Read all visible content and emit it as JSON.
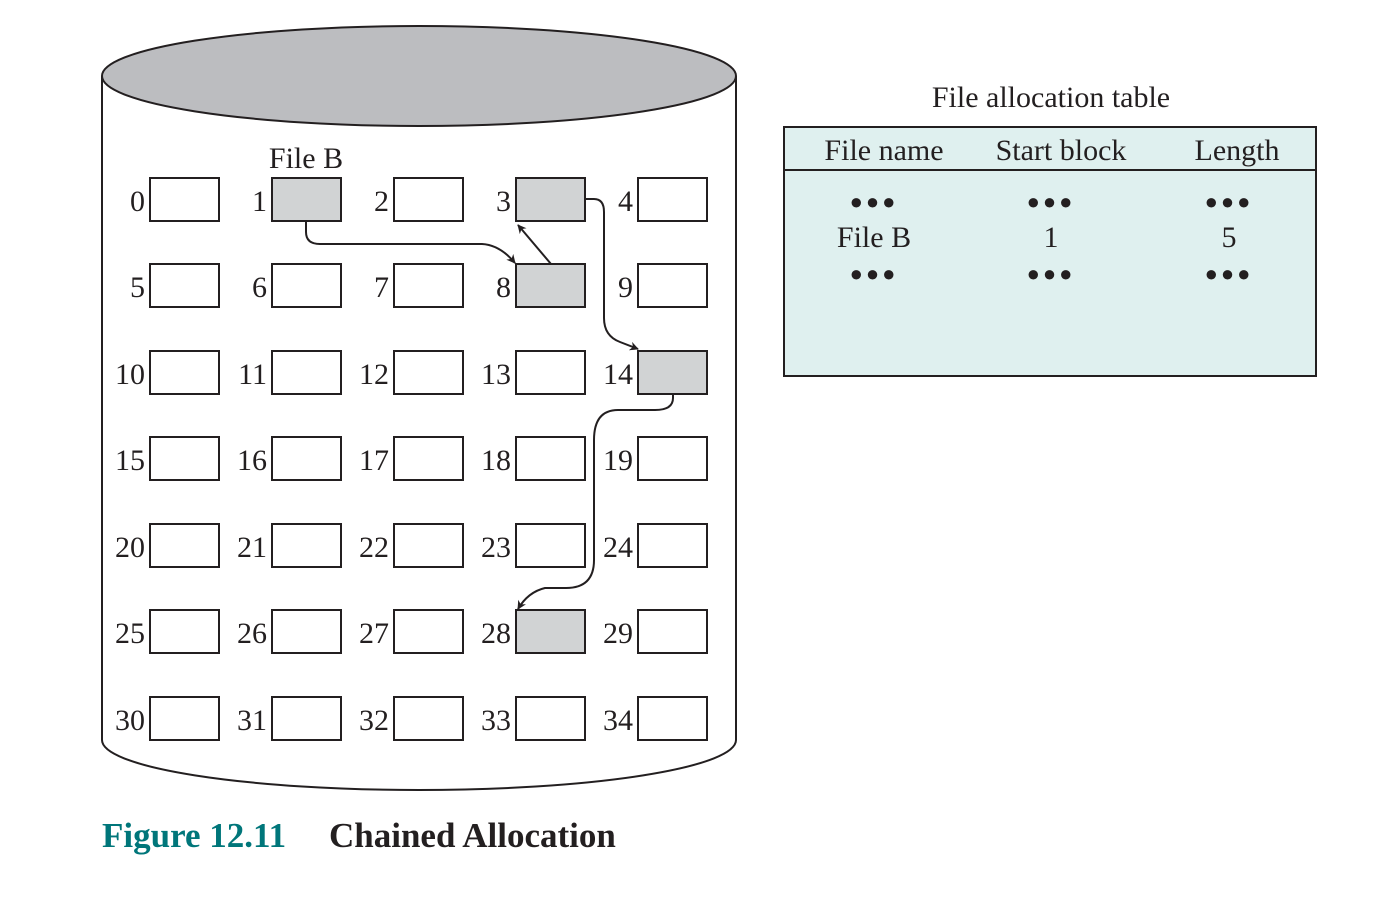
{
  "disk": {
    "file_label": "File B",
    "blocks": [
      {
        "n": "0",
        "used": false
      },
      {
        "n": "1",
        "used": true
      },
      {
        "n": "2",
        "used": false
      },
      {
        "n": "3",
        "used": true
      },
      {
        "n": "4",
        "used": false
      },
      {
        "n": "5",
        "used": false
      },
      {
        "n": "6",
        "used": false
      },
      {
        "n": "7",
        "used": false
      },
      {
        "n": "8",
        "used": true
      },
      {
        "n": "9",
        "used": false
      },
      {
        "n": "10",
        "used": false
      },
      {
        "n": "11",
        "used": false
      },
      {
        "n": "12",
        "used": false
      },
      {
        "n": "13",
        "used": false
      },
      {
        "n": "14",
        "used": true
      },
      {
        "n": "15",
        "used": false
      },
      {
        "n": "16",
        "used": false
      },
      {
        "n": "17",
        "used": false
      },
      {
        "n": "18",
        "used": false
      },
      {
        "n": "19",
        "used": false
      },
      {
        "n": "20",
        "used": false
      },
      {
        "n": "21",
        "used": false
      },
      {
        "n": "22",
        "used": false
      },
      {
        "n": "23",
        "used": false
      },
      {
        "n": "24",
        "used": false
      },
      {
        "n": "25",
        "used": false
      },
      {
        "n": "26",
        "used": false
      },
      {
        "n": "27",
        "used": false
      },
      {
        "n": "28",
        "used": true
      },
      {
        "n": "29",
        "used": false
      },
      {
        "n": "30",
        "used": false
      },
      {
        "n": "31",
        "used": false
      },
      {
        "n": "32",
        "used": false
      },
      {
        "n": "33",
        "used": false
      },
      {
        "n": "34",
        "used": false
      }
    ],
    "chain": [
      "1",
      "8",
      "3",
      "14",
      "28"
    ]
  },
  "fat": {
    "title": "File allocation table",
    "headers": [
      "File name",
      "Start block",
      "Length"
    ],
    "rows": [
      [
        "●●●",
        "●●●",
        "●●●"
      ],
      [
        "File B",
        "1",
        "5"
      ],
      [
        "●●●",
        "●●●",
        "●●●"
      ]
    ]
  },
  "caption": {
    "number": "Figure 12.11",
    "title": "Chained Allocation"
  },
  "colors": {
    "used_block": "#d1d3d4",
    "free_block": "#ffffff",
    "cylinder_top": "#bcbdc0",
    "table_fill": "#dff0ef",
    "caption_accent": "#00767a",
    "line": "#231f20"
  }
}
